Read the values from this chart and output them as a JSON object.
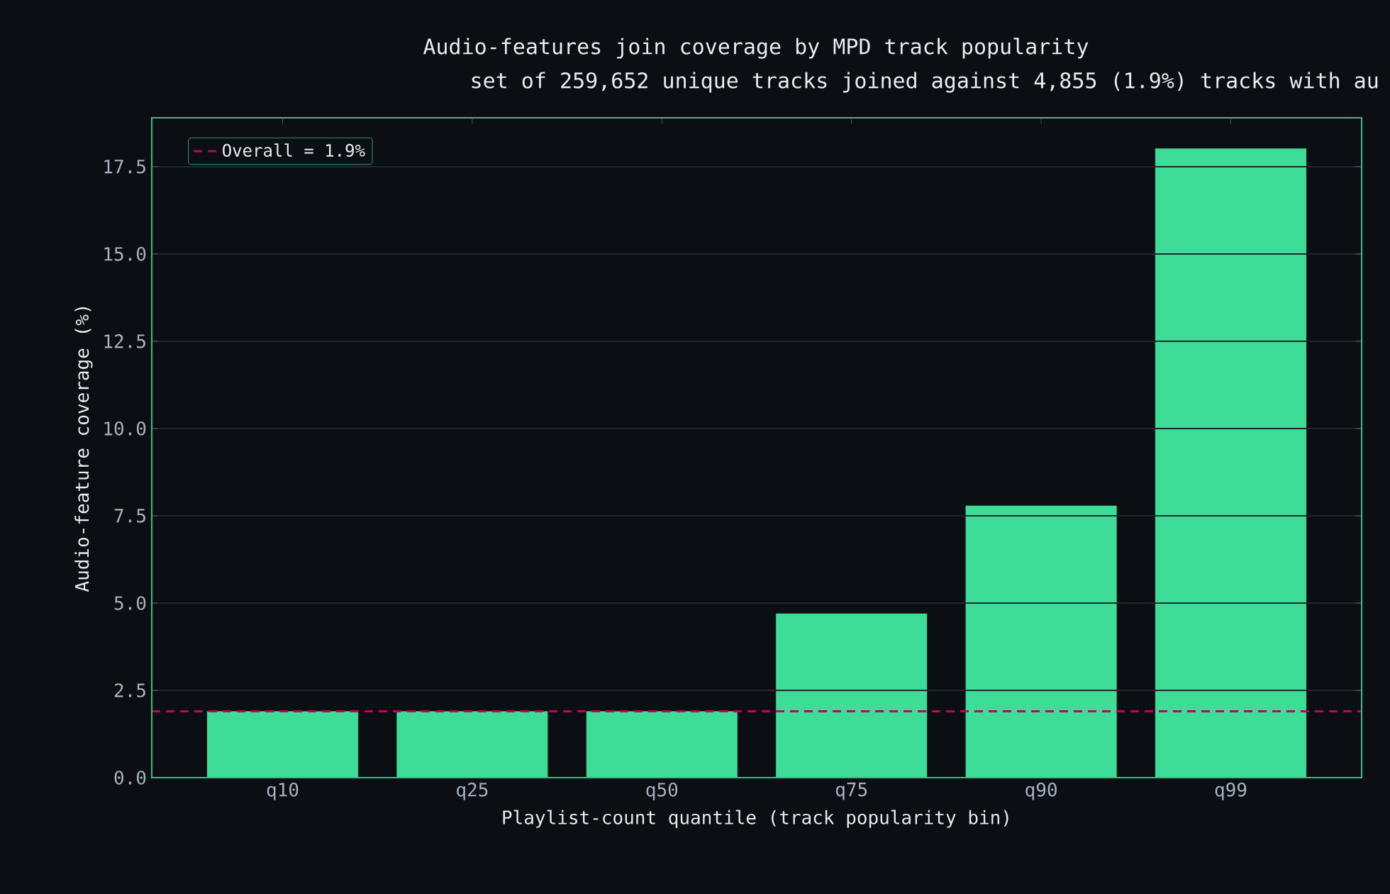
{
  "chart_data": {
    "type": "bar",
    "title": "Audio-features join coverage by MPD track popularity",
    "subtitle": "set of 259,652 unique tracks joined against 4,855 (1.9%) tracks with au",
    "xlabel": "Playlist-count quantile (track popularity bin)",
    "ylabel": "Audio-feature coverage (%)",
    "categories": [
      "q10",
      "q25",
      "q50",
      "q75",
      "q90",
      "q99"
    ],
    "values": [
      1.91,
      1.91,
      1.91,
      4.71,
      7.8,
      18.03
    ],
    "color": "#3ddc97",
    "ylim": [
      0,
      18.9
    ],
    "yticks": [
      {
        "value": 0,
        "label": "0.0"
      },
      {
        "value": 2.5,
        "label": "2.5"
      },
      {
        "value": 5,
        "label": "5.0"
      },
      {
        "value": 7.5,
        "label": "7.5"
      },
      {
        "value": 10,
        "label": "10.0"
      },
      {
        "value": 12.5,
        "label": "12.5"
      },
      {
        "value": 15,
        "label": "15.0"
      },
      {
        "value": 17.5,
        "label": "17.5"
      }
    ],
    "ref_lines": [
      {
        "axis": "y",
        "value": 1.9,
        "label": "Overall = 1.9%",
        "color": "#c0005a",
        "line_style": "dashed"
      }
    ],
    "grid": "y",
    "legend": "top left"
  }
}
